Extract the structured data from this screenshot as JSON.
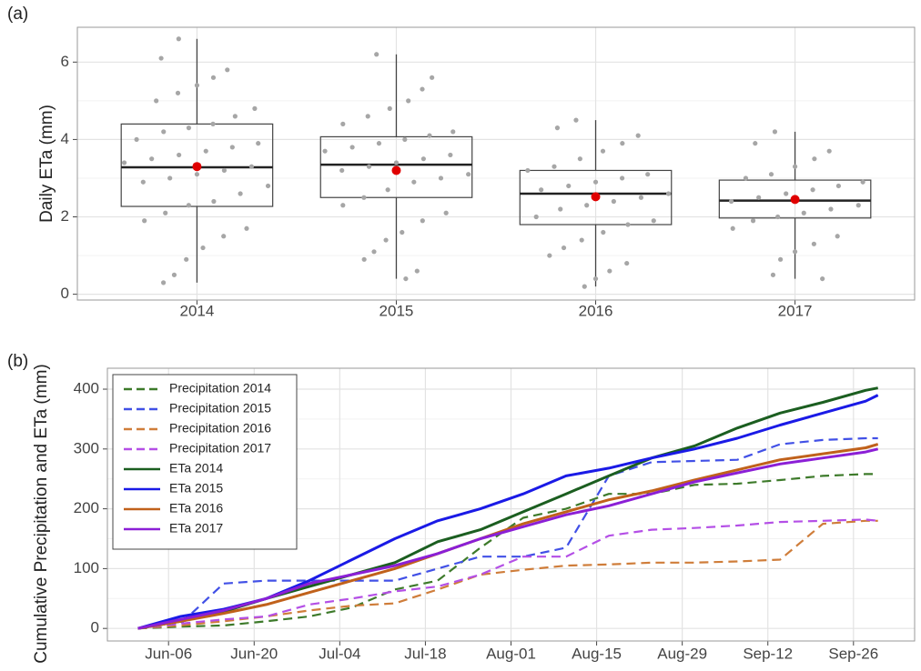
{
  "chart_data": [
    {
      "type": "box",
      "label": "(a)",
      "y_label": "Daily ETa (mm)",
      "categories": [
        "2014",
        "2015",
        "2016",
        "2017"
      ],
      "boxes": [
        {
          "min": 0.3,
          "q1": 2.27,
          "median": 3.28,
          "q3": 4.4,
          "max": 6.6,
          "mean": 3.3
        },
        {
          "min": 0.4,
          "q1": 2.5,
          "median": 3.35,
          "q3": 4.07,
          "max": 6.2,
          "mean": 3.2
        },
        {
          "min": 0.2,
          "q1": 1.8,
          "median": 2.6,
          "q3": 3.2,
          "max": 4.5,
          "mean": 2.52
        },
        {
          "min": 0.4,
          "q1": 1.97,
          "median": 2.42,
          "q3": 2.95,
          "max": 4.2,
          "mean": 2.45
        }
      ],
      "points": [
        [
          0.3,
          0.5,
          0.9,
          1.2,
          1.5,
          1.7,
          1.9,
          2.1,
          2.3,
          2.4,
          2.6,
          2.8,
          2.9,
          3.0,
          3.1,
          3.2,
          3.3,
          3.4,
          3.5,
          3.6,
          3.7,
          3.8,
          3.9,
          4.0,
          4.2,
          4.3,
          4.4,
          4.6,
          4.8,
          5.0,
          5.2,
          5.4,
          5.6,
          5.8,
          6.1,
          6.6
        ],
        [
          0.4,
          0.6,
          0.9,
          1.1,
          1.4,
          1.6,
          1.9,
          2.1,
          2.3,
          2.5,
          2.7,
          2.9,
          3.0,
          3.1,
          3.2,
          3.3,
          3.4,
          3.5,
          3.6,
          3.7,
          3.8,
          3.9,
          4.0,
          4.1,
          4.2,
          4.4,
          4.6,
          4.8,
          5.0,
          5.3,
          5.6,
          6.2
        ],
        [
          0.2,
          0.4,
          0.6,
          0.8,
          1.0,
          1.2,
          1.4,
          1.6,
          1.8,
          1.9,
          2.0,
          2.2,
          2.3,
          2.4,
          2.5,
          2.6,
          2.7,
          2.8,
          2.9,
          3.0,
          3.1,
          3.2,
          3.3,
          3.5,
          3.7,
          3.9,
          4.1,
          4.3,
          4.5
        ],
        [
          0.4,
          0.5,
          0.9,
          1.1,
          1.3,
          1.5,
          1.7,
          1.9,
          2.0,
          2.1,
          2.2,
          2.3,
          2.4,
          2.5,
          2.6,
          2.7,
          2.8,
          2.9,
          3.0,
          3.1,
          3.3,
          3.5,
          3.7,
          3.9,
          4.2
        ]
      ],
      "point_color": "#a6a6a6",
      "mean_color": "#e00000",
      "ylim": [
        -0.15,
        6.9
      ],
      "yticks": [
        0,
        2,
        4,
        6
      ],
      "grid": true
    },
    {
      "type": "line",
      "label": "(b)",
      "y_label": "Cumulative Precipitation and ETa (mm)",
      "x": [
        "Jun-01",
        "Jun-08",
        "Jun-15",
        "Jun-22",
        "Jun-29",
        "Jul-06",
        "Jul-13",
        "Jul-20",
        "Jul-27",
        "Aug-03",
        "Aug-10",
        "Aug-17",
        "Aug-24",
        "Aug-31",
        "Sep-07",
        "Sep-14",
        "Sep-21",
        "Sep-28",
        "Sep-30"
      ],
      "series": [
        {
          "name": "Precipitation 2014",
          "color": "#3d7a2a",
          "linestyle": "dashed",
          "values": [
            0,
            3,
            5,
            12,
            20,
            35,
            65,
            80,
            135,
            185,
            200,
            225,
            225,
            240,
            242,
            248,
            255,
            258,
            258
          ]
        },
        {
          "name": "Precipitation 2015",
          "color": "#4150e6",
          "linestyle": "dashed",
          "values": [
            0,
            8,
            75,
            80,
            80,
            80,
            80,
            100,
            120,
            120,
            135,
            255,
            278,
            280,
            282,
            308,
            315,
            318,
            318
          ]
        },
        {
          "name": "Precipitation 2016",
          "color": "#cf7d3a",
          "linestyle": "dashed",
          "values": [
            0,
            5,
            12,
            20,
            30,
            38,
            42,
            65,
            90,
            98,
            105,
            107,
            110,
            110,
            112,
            115,
            175,
            180,
            180
          ]
        },
        {
          "name": "Precipitation 2017",
          "color": "#b44fe6",
          "linestyle": "dashed",
          "values": [
            0,
            8,
            15,
            20,
            40,
            50,
            62,
            70,
            90,
            120,
            120,
            155,
            165,
            168,
            172,
            178,
            180,
            182,
            180
          ]
        },
        {
          "name": "ETa 2014",
          "color": "#1b5e20",
          "linestyle": "solid",
          "values": [
            0,
            12,
            28,
            50,
            70,
            90,
            110,
            145,
            165,
            195,
            225,
            255,
            285,
            305,
            335,
            360,
            378,
            398,
            402
          ]
        },
        {
          "name": "ETa 2015",
          "color": "#1a1ae6",
          "linestyle": "solid",
          "values": [
            0,
            20,
            32,
            50,
            80,
            115,
            150,
            180,
            200,
            225,
            255,
            268,
            285,
            300,
            318,
            340,
            360,
            380,
            390
          ]
        },
        {
          "name": "ETa 2016",
          "color": "#c0611b",
          "linestyle": "solid",
          "values": [
            0,
            12,
            25,
            40,
            60,
            80,
            100,
            125,
            150,
            175,
            195,
            215,
            230,
            248,
            265,
            282,
            292,
            302,
            308
          ]
        },
        {
          "name": "ETa 2017",
          "color": "#8b1fd6",
          "linestyle": "solid",
          "values": [
            0,
            15,
            30,
            50,
            75,
            90,
            105,
            125,
            150,
            170,
            190,
            205,
            225,
            245,
            260,
            275,
            285,
            295,
            300
          ]
        }
      ],
      "xlim": [
        "May-27",
        "Oct-06"
      ],
      "xticks": [
        "Jun-06",
        "Jun-20",
        "Jul-04",
        "Jul-18",
        "Aug-01",
        "Aug-15",
        "Aug-29",
        "Sep-12",
        "Sep-26"
      ],
      "ylim": [
        -21,
        435
      ],
      "yticks": [
        0,
        100,
        200,
        300,
        400
      ],
      "grid": true,
      "legend": "top-left"
    }
  ]
}
